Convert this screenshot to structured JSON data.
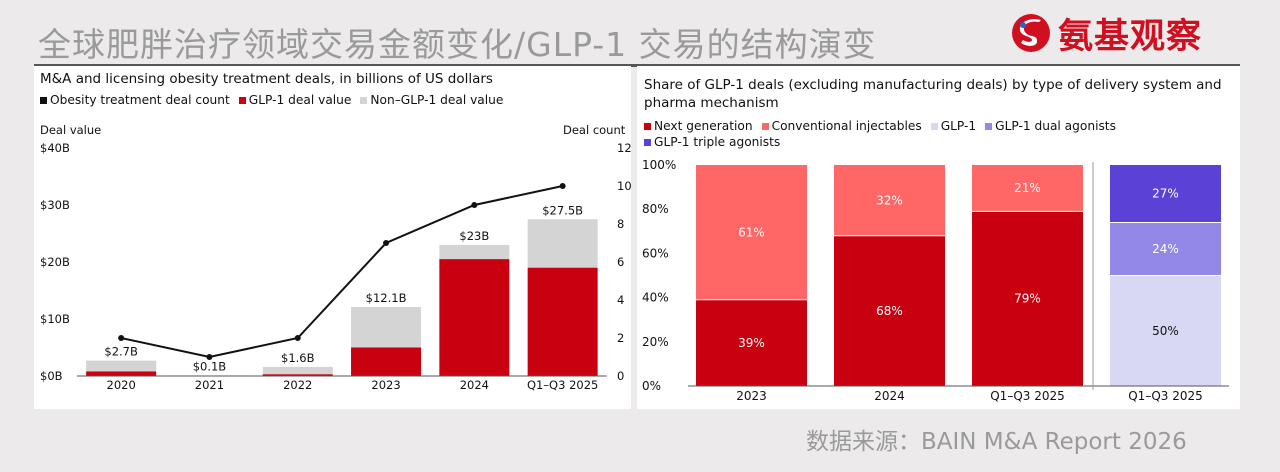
{
  "page": {
    "title": "全球肥胖治疗领域交易金额变化/GLP-1 交易的结构演变",
    "logo_text": "氨基观察",
    "source": "数据来源：BAIN M&A Report 2026"
  },
  "colors": {
    "red": "#c8000f",
    "gray": "#d4d4d4",
    "black": "#111111",
    "next_gen": "#c8000f",
    "conventional": "#ff6666",
    "glp1": "#d8d8f5",
    "dual": "#9387e8",
    "triple": "#5b41d6",
    "logo_red": "#d01020"
  },
  "chart_data": [
    {
      "type": "bar",
      "title": "M&A and licensing obesity treatment deals, in billions of US dollars",
      "legend": [
        "Obesity treatment deal count",
        "GLP-1 deal value",
        "Non–GLP-1 deal value"
      ],
      "left_axis_title": "Deal value",
      "right_axis_title": "Deal count",
      "categories": [
        "2020",
        "2021",
        "2022",
        "2023",
        "2024",
        "Q1–Q3 2025"
      ],
      "series": [
        {
          "name": "GLP-1 deal value",
          "values": [
            0.8,
            0.05,
            0.3,
            5.0,
            20.5,
            19.0
          ]
        },
        {
          "name": "Non–GLP-1 deal value",
          "values": [
            1.9,
            0.05,
            1.3,
            7.1,
            2.5,
            8.5
          ]
        }
      ],
      "line_series": {
        "name": "Obesity treatment deal count",
        "values": [
          2,
          1,
          2,
          7,
          9,
          10
        ]
      },
      "totals": [
        "$2.7B",
        "$0.1B",
        "$1.6B",
        "$12.1B",
        "$23B",
        "$27.5B"
      ],
      "yticks_left": [
        "$0B",
        "$10B",
        "$20B",
        "$30B",
        "$40B"
      ],
      "yticks_right": [
        "0",
        "2",
        "4",
        "6",
        "8",
        "10",
        "12"
      ],
      "ylim_left": [
        0,
        40
      ],
      "ylim_right": [
        0,
        12
      ]
    },
    {
      "type": "bar",
      "stacked": "percent",
      "title_line1": "Share of GLP-1 deals (excluding manufacturing deals) by type of delivery system and",
      "title_line2": "pharma mechanism",
      "legend": [
        "Next generation",
        "Conventional injectables",
        "GLP-1",
        "GLP-1 dual agonists",
        "GLP-1 triple agonists"
      ],
      "categories": [
        "2023",
        "2024",
        "Q1–Q3 2025",
        "Q1–Q3 2025"
      ],
      "yticks": [
        "0%",
        "20%",
        "40%",
        "60%",
        "80%",
        "100%"
      ],
      "ylim": [
        0,
        100
      ],
      "bars": [
        {
          "segments": [
            {
              "name": "Next generation",
              "value": 39,
              "label": "39%"
            },
            {
              "name": "Conventional injectables",
              "value": 61,
              "label": "61%"
            }
          ]
        },
        {
          "segments": [
            {
              "name": "Next generation",
              "value": 68,
              "label": "68%"
            },
            {
              "name": "Conventional injectables",
              "value": 32,
              "label": "32%"
            }
          ]
        },
        {
          "segments": [
            {
              "name": "Next generation",
              "value": 79,
              "label": "79%"
            },
            {
              "name": "Conventional injectables",
              "value": 21,
              "label": "21%"
            }
          ]
        },
        {
          "segments": [
            {
              "name": "GLP-1",
              "value": 50,
              "label": "50%"
            },
            {
              "name": "GLP-1 dual agonists",
              "value": 24,
              "label": "24%"
            },
            {
              "name": "GLP-1 triple agonists",
              "value": 27,
              "label": "27%"
            }
          ]
        }
      ]
    }
  ]
}
